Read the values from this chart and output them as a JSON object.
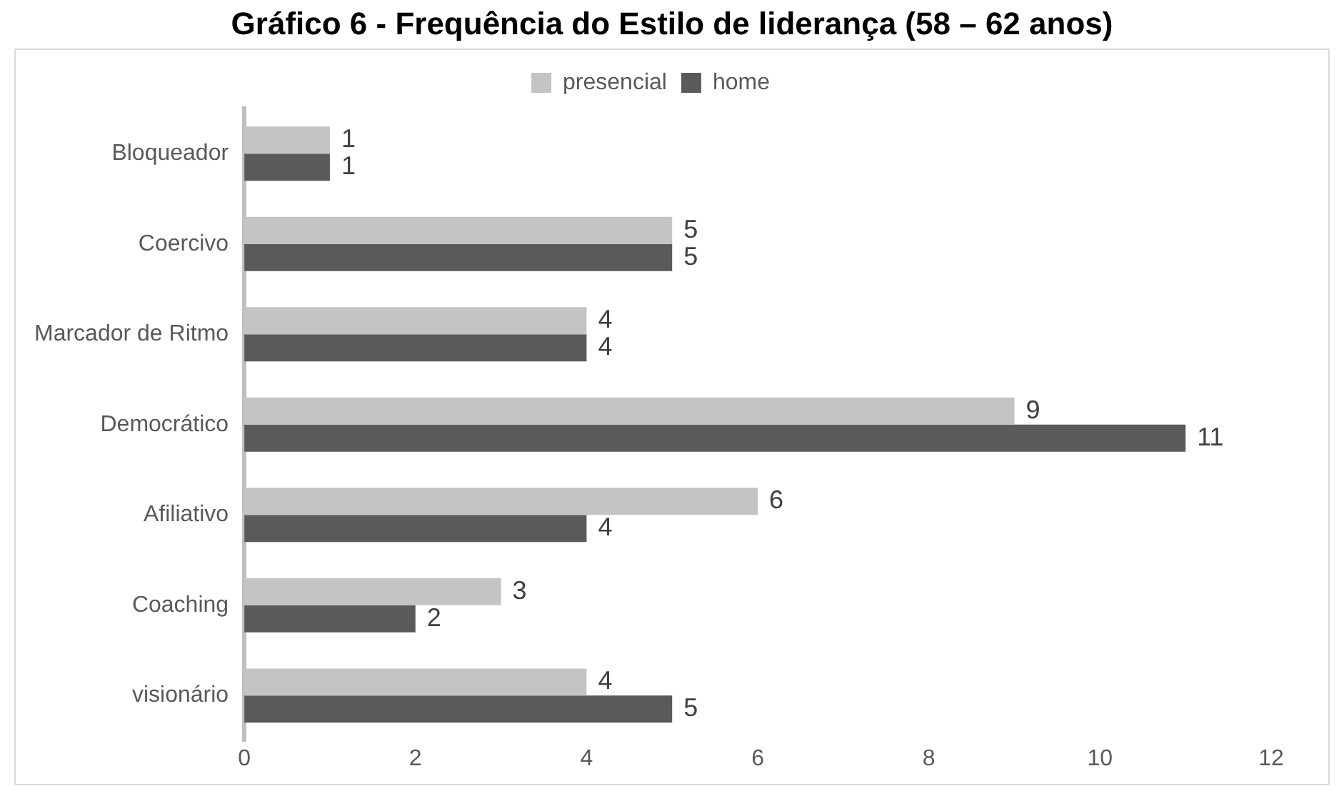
{
  "chart_data": {
    "type": "bar",
    "orientation": "horizontal",
    "title": "Gráfico 6 - Frequência do Estilo de liderança (58 – 62 anos)",
    "categories": [
      "Bloqueador",
      "Coercivo",
      "Marcador de Ritmo",
      "Democrático",
      "Afiliativo",
      "Coaching",
      "visionário"
    ],
    "series": [
      {
        "name": "presencial",
        "color": "#c4c4c4",
        "values": [
          1,
          5,
          4,
          9,
          6,
          3,
          4
        ]
      },
      {
        "name": "home",
        "color": "#5a5a5a",
        "values": [
          1,
          5,
          4,
          11,
          4,
          2,
          5
        ]
      }
    ],
    "xlim": [
      0,
      12
    ],
    "xticks": [
      0,
      2,
      4,
      6,
      8,
      10,
      12
    ],
    "grid": false,
    "legend": "top",
    "data_labels": true
  }
}
